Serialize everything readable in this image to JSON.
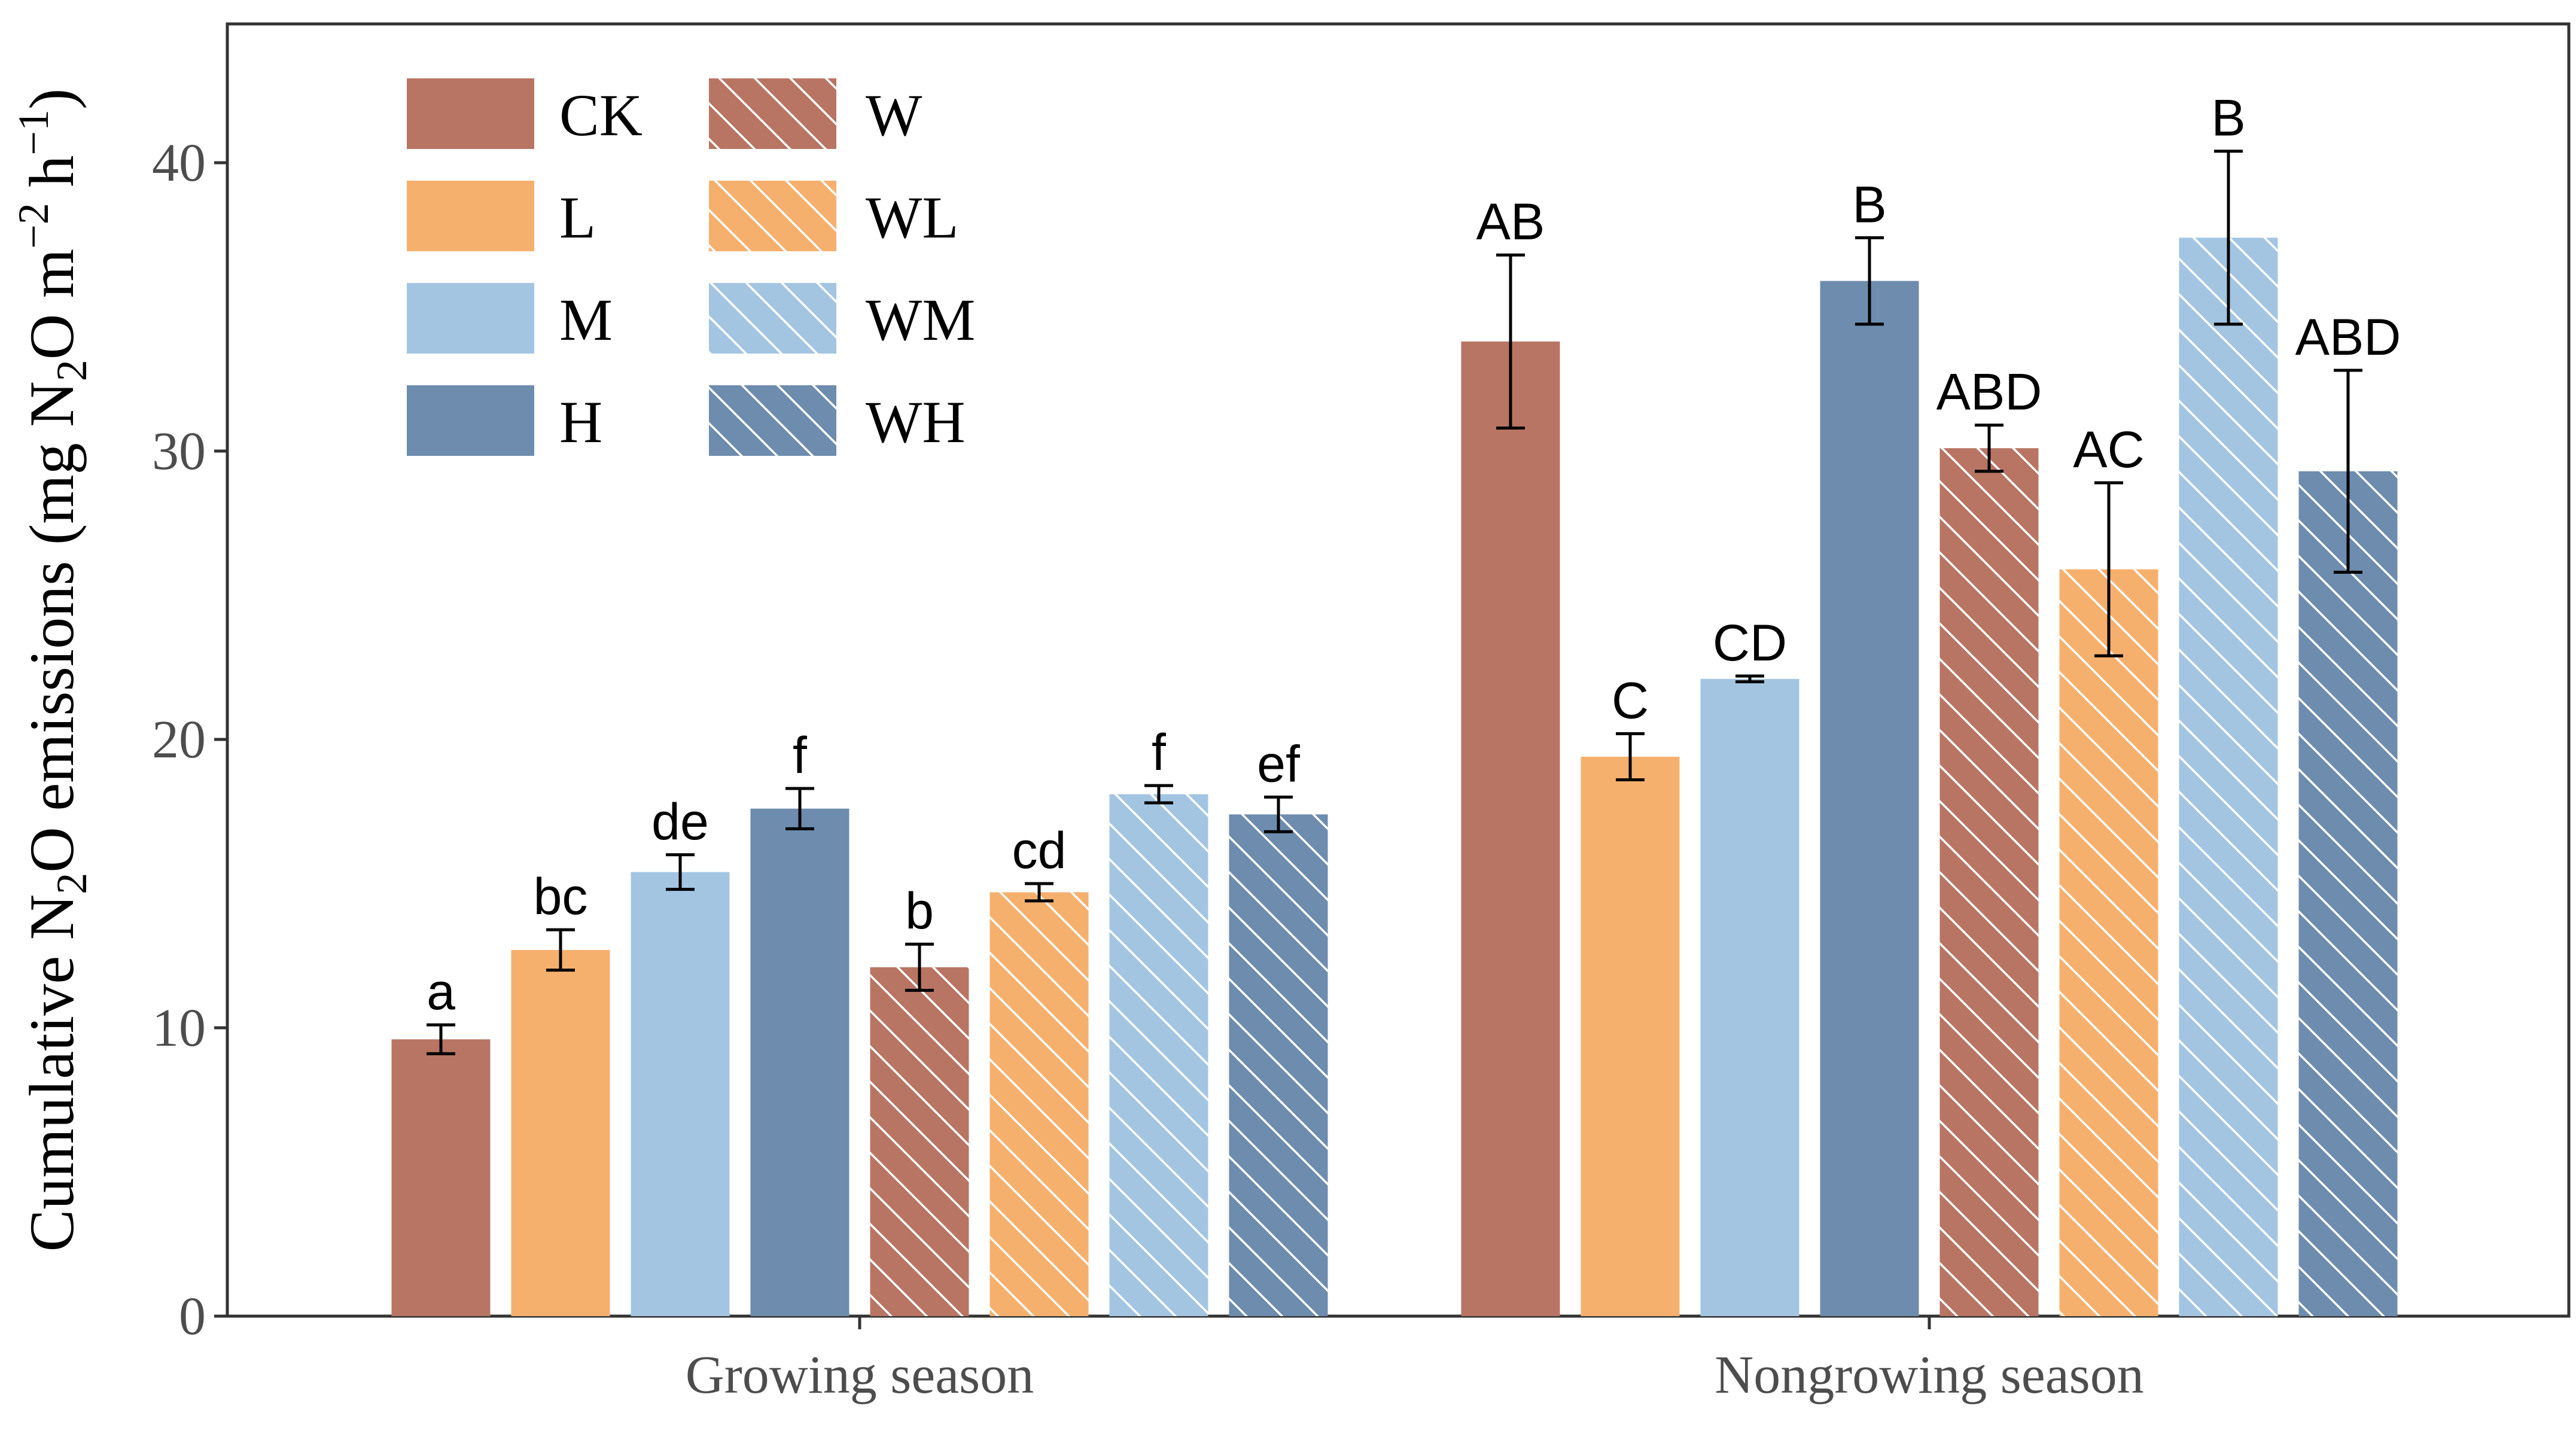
{
  "chart_data": {
    "type": "bar",
    "title": "",
    "xlabel": "",
    "ylabel": {
      "prefix": "Cumulative N",
      "sub1": "2",
      "mid": "O emissions (mg N",
      "sub2": "2",
      "mid2": "O m",
      "sup1": "−2",
      "mid3": " h",
      "sup2": "−1",
      "suffix": ")"
    },
    "ylim": [
      0,
      45
    ],
    "yticks": [
      0,
      10,
      20,
      30,
      40
    ],
    "groups": [
      "Growing season",
      "Nongrowing season"
    ],
    "series": [
      {
        "name": "CK",
        "color": "#b87563",
        "hatched": false,
        "values": [
          9.6,
          33.8
        ],
        "errors": [
          0.5,
          3.0
        ],
        "letters": [
          "a",
          "AB"
        ]
      },
      {
        "name": "L",
        "color": "#f6b06e",
        "hatched": false,
        "values": [
          12.7,
          19.4
        ],
        "errors": [
          0.7,
          0.8
        ],
        "letters": [
          "bc",
          "C"
        ]
      },
      {
        "name": "M",
        "color": "#a3c5e2",
        "hatched": false,
        "values": [
          15.4,
          22.1
        ],
        "errors": [
          0.6,
          0.1
        ],
        "letters": [
          "de",
          "CD"
        ]
      },
      {
        "name": "H",
        "color": "#6d8cae",
        "hatched": false,
        "values": [
          17.6,
          35.9
        ],
        "errors": [
          0.7,
          1.5
        ],
        "letters": [
          "f",
          "B"
        ]
      },
      {
        "name": "W",
        "color": "#b87563",
        "hatched": true,
        "values": [
          12.1,
          30.1
        ],
        "errors": [
          0.8,
          0.8
        ],
        "letters": [
          "b",
          "ABD"
        ]
      },
      {
        "name": "WL",
        "color": "#f6b06e",
        "hatched": true,
        "values": [
          14.7,
          25.9
        ],
        "errors": [
          0.3,
          3.0
        ],
        "letters": [
          "cd",
          "AC"
        ]
      },
      {
        "name": "WM",
        "color": "#a3c5e2",
        "hatched": true,
        "values": [
          18.1,
          37.4
        ],
        "errors": [
          0.3,
          3.0
        ],
        "letters": [
          "f",
          "B"
        ]
      },
      {
        "name": "WH",
        "color": "#6d8cae",
        "hatched": true,
        "values": [
          17.4,
          29.3
        ],
        "errors": [
          0.6,
          3.5
        ],
        "letters": [
          "ef",
          "ABD"
        ]
      }
    ],
    "legend": {
      "position": "top-left",
      "columns": [
        [
          "CK",
          "L",
          "M",
          "H"
        ],
        [
          "W",
          "WL",
          "WM",
          "WH"
        ]
      ]
    },
    "grid": false,
    "colors": {
      "axis": "#333333",
      "tick_text": "#4d4d4d",
      "error_bar": "#000000",
      "hatch": "#ffffff"
    }
  }
}
